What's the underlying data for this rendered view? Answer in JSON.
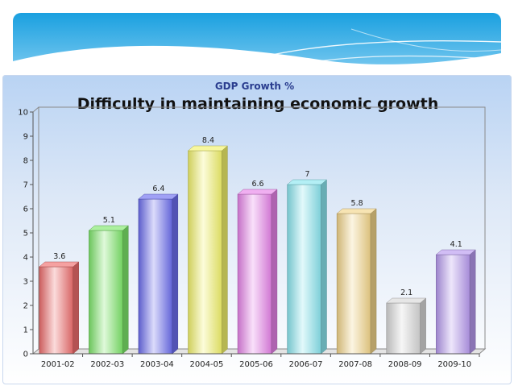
{
  "chart_data": {
    "type": "bar",
    "title": "Difficulty in maintaining economic growth",
    "subtitle": "GDP Growth %",
    "xlabel": "",
    "ylabel": "",
    "ylim": [
      0,
      10
    ],
    "yticks": [
      0,
      1,
      2,
      3,
      4,
      5,
      6,
      7,
      8,
      9,
      10
    ],
    "grid": false,
    "categories": [
      "2001-02",
      "2002-03",
      "2003-04",
      "2004-05",
      "2005-06",
      "2006-07",
      "2007-08",
      "2008-09",
      "2009-10"
    ],
    "values": [
      3.6,
      5.1,
      6.4,
      8.4,
      6.6,
      7,
      5.8,
      2.1,
      4.1
    ],
    "value_labels": [
      "3.6",
      "5.1",
      "6.4",
      "8.4",
      "6.6",
      "7",
      "5.8",
      "2.1",
      "4.1"
    ],
    "colors": [
      "#f06f6f",
      "#7fe86c",
      "#6d6ff0",
      "#f3f36c",
      "#e884ea",
      "#8ae6f0",
      "#f3d58a",
      "#d9d9d9",
      "#b89af0"
    ]
  }
}
